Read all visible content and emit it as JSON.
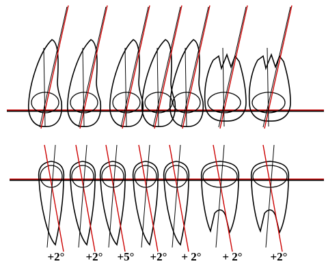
{
  "diagram": {
    "reference_line_color": "#cc0000",
    "axis_line_color": "#cc0000",
    "outline_color": "#000000",
    "upper_teeth": [
      {
        "type": "incisor-wide"
      },
      {
        "type": "incisor"
      },
      {
        "type": "canine"
      },
      {
        "type": "premolar"
      },
      {
        "type": "premolar"
      },
      {
        "type": "molar"
      },
      {
        "type": "molar"
      }
    ],
    "lower_teeth": [
      {
        "type": "incisor"
      },
      {
        "type": "incisor"
      },
      {
        "type": "canine"
      },
      {
        "type": "premolar"
      },
      {
        "type": "premolar"
      },
      {
        "type": "molar"
      },
      {
        "type": "molar"
      }
    ],
    "angle_labels": [
      "+2°",
      "+2°",
      "+5°",
      "+2°",
      "+ 2°",
      "+ 2°",
      "+2°"
    ]
  }
}
